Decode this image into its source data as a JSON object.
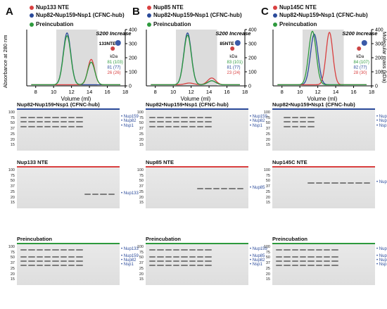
{
  "colors": {
    "red": "#d94040",
    "blue": "#2a4a9a",
    "green": "#2e9a3e",
    "shade": "#dcdcdc"
  },
  "panels": [
    {
      "letter": "A",
      "legend": [
        "Nup133 NTE",
        "Nup82•Nup159•Nsp1 (CFNC-hub)",
        "Preincubation"
      ],
      "inset_title": "S200 Increase",
      "callout": "133NTE",
      "kda_label": "kDa",
      "kda": [
        {
          "text": "81 (103)",
          "color": "green"
        },
        {
          "text": "81 (77)",
          "color": "blue"
        },
        {
          "text": "26 (26)",
          "color": "red"
        }
      ],
      "gels": [
        {
          "title": "Nup82•Nup159•Nsp1 (CFNC-hub)",
          "bar": "blue",
          "markers": [
            "Nup159",
            "Nup82",
            "Nsp1"
          ]
        },
        {
          "title": "Nup133 NTE",
          "bar": "red",
          "markers": [
            "Nup133"
          ]
        },
        {
          "title": "Preincubation",
          "bar": "green",
          "markers": [
            "Nup133",
            "Nup159",
            "Nup82",
            "Nsp1"
          ]
        }
      ]
    },
    {
      "letter": "B",
      "legend": [
        "Nup85 NTE",
        "Nup82•Nup159•Nsp1 (CFNC-hub)",
        "Preincubation"
      ],
      "inset_title": "S200 Increase",
      "callout": "85NTE",
      "kda_label": "kDa",
      "kda": [
        {
          "text": "83 (101)",
          "color": "green"
        },
        {
          "text": "81 (77)",
          "color": "blue"
        },
        {
          "text": "23 (24)",
          "color": "red"
        }
      ],
      "gels": [
        {
          "title": "Nup82•Nup159•Nsp1 (CFNC-hub)",
          "bar": "blue",
          "markers": [
            "Nup159",
            "Nup82",
            "Nsp1"
          ]
        },
        {
          "title": "Nup85 NTE",
          "bar": "red",
          "markers": [
            "Nup85"
          ]
        },
        {
          "title": "Preincubation",
          "bar": "green",
          "markers": [
            "Nup159",
            "Nup85",
            "Nup82",
            "Nsp1"
          ]
        }
      ]
    },
    {
      "letter": "C",
      "legend": [
        "Nup145C NTE",
        "Nup82•Nup159•Nsp1 (CFNC-hub)",
        "Preincubation"
      ],
      "inset_title": "S200 Increase",
      "callout": "",
      "kda_label": "kDa",
      "kda": [
        {
          "text": "84 (107)",
          "color": "green"
        },
        {
          "text": "82 (77)",
          "color": "blue"
        },
        {
          "text": "28 (30)",
          "color": "red"
        }
      ],
      "gels": [
        {
          "title": "Nup82•Nup159•Nsp1 (CFNC-hub)",
          "bar": "blue",
          "markers": [
            "Nup159",
            "Nup82",
            "Nsp1"
          ]
        },
        {
          "title": "Nup145C NTE",
          "bar": "red",
          "markers": [
            "Nup145C"
          ]
        },
        {
          "title": "Preincubation",
          "bar": "green",
          "markers": [
            "Nup145C",
            "Nup159",
            "Nup82",
            "Nsp1"
          ]
        }
      ]
    }
  ],
  "axis": {
    "xlabel": "Volume (ml)",
    "ylabel_left": "Absorbance at 280 nm",
    "ylabel_right": "Molecular mass (kDa)",
    "xticks": [
      "8",
      "10",
      "12",
      "14",
      "16",
      "18"
    ],
    "yticks_right": [
      "0",
      "100",
      "200",
      "300",
      "400"
    ],
    "mw_ladder": [
      "100",
      "75",
      "50",
      "37",
      "25",
      "20",
      "15"
    ]
  },
  "chart_data": [
    {
      "type": "line",
      "title": "",
      "xlabel": "Volume (ml)",
      "ylabel": "Absorbance at 280 nm",
      "xlim": [
        7,
        18
      ],
      "series": [
        {
          "name": "Nup82•Nup159•Nsp1 (CFNC-hub)",
          "color": "blue",
          "peak_x": 11.5,
          "peak_y": 0.92
        },
        {
          "name": "Nup133 NTE",
          "color": "red",
          "peak_x": 14.2,
          "peak_y": 0.45
        },
        {
          "name": "Preincubation",
          "color": "green",
          "peak_x": 11.5,
          "peak_y": 0.87
        }
      ]
    },
    {
      "type": "line",
      "title": "",
      "xlabel": "Volume (ml)",
      "ylabel": "Absorbance at 280 nm",
      "xlim": [
        7,
        18
      ],
      "series": [
        {
          "name": "Nup82•Nup159•Nsp1 (CFNC-hub)",
          "color": "blue",
          "peak_x": 11.6,
          "peak_y": 0.92
        },
        {
          "name": "Nup85 NTE",
          "color": "red",
          "peak_x": 14.3,
          "peak_y": 0.12
        },
        {
          "name": "Preincubation",
          "color": "green",
          "peak_x": 11.6,
          "peak_y": 0.88
        }
      ]
    },
    {
      "type": "line",
      "title": "",
      "xlabel": "Volume (ml)",
      "ylabel": "Absorbance at 280 nm",
      "xlim": [
        7,
        18
      ],
      "series": [
        {
          "name": "Nup82•Nup159•Nsp1 (CFNC-hub)",
          "color": "blue",
          "peak_x": 11.6,
          "peak_y": 0.9
        },
        {
          "name": "Nup145C NTE",
          "color": "red",
          "peak_x": 13.3,
          "peak_y": 0.93
        },
        {
          "name": "Preincubation",
          "color": "green",
          "peak_x": 11.4,
          "peak_y": 0.95
        }
      ]
    }
  ]
}
